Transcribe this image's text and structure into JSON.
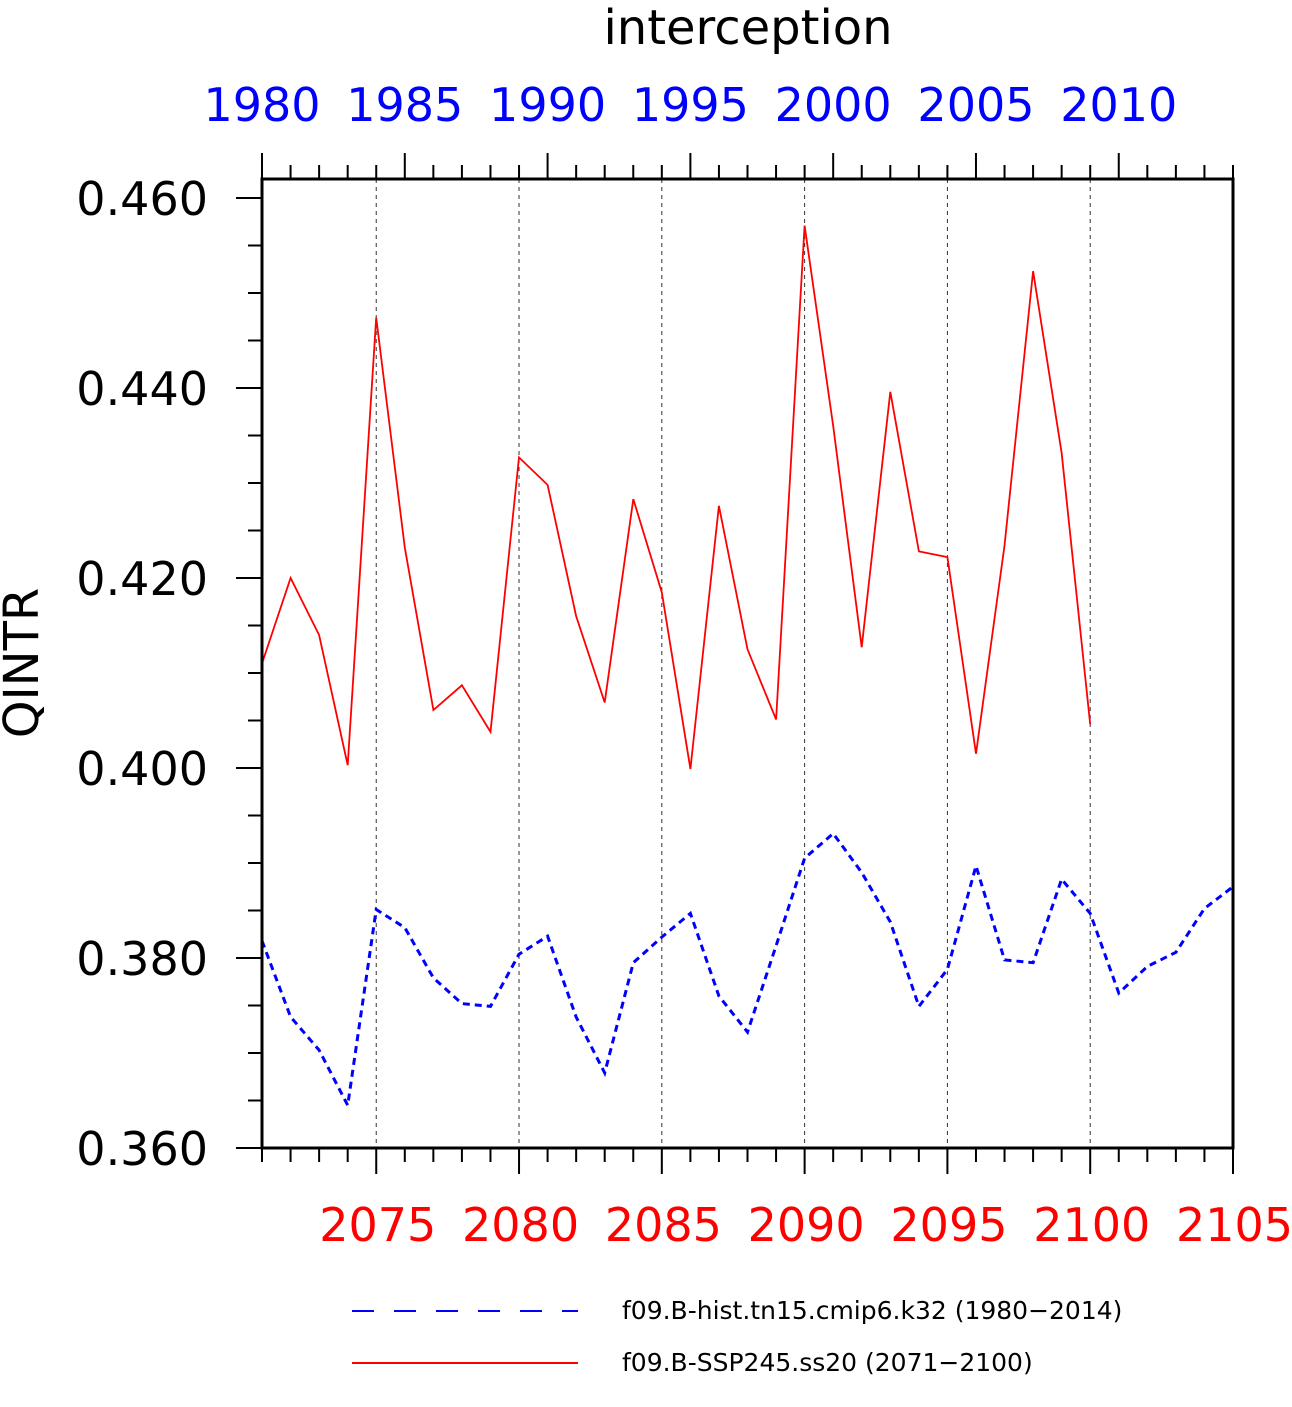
{
  "chart_data": {
    "type": "line",
    "title": "interception",
    "ylabel": "QINTR",
    "ylim": [
      0.36,
      0.462
    ],
    "y_ticks": [
      "0.360",
      "0.380",
      "0.400",
      "0.420",
      "0.440",
      "0.460"
    ],
    "y_tick_values": [
      0.36,
      0.38,
      0.4,
      0.42,
      0.44,
      0.46
    ],
    "grid": "vertical dashed lines at labeled x ticks",
    "legend_position": "bottom",
    "colors": {
      "hist": "#0000ff",
      "ssp": "#ff0000",
      "axis": "#000000"
    },
    "bottom_axis": {
      "color": "#ff0000",
      "range": [
        2071,
        2105
      ],
      "tick_labels": [
        "2075",
        "2080",
        "2085",
        "2090",
        "2095",
        "2100",
        "2105"
      ],
      "tick_values": [
        2075,
        2080,
        2085,
        2090,
        2095,
        2100,
        2105
      ]
    },
    "top_axis": {
      "color": "#0000ff",
      "range": [
        1980,
        2014
      ],
      "tick_labels": [
        "1980",
        "1985",
        "1990",
        "1995",
        "2000",
        "2005",
        "2010"
      ],
      "tick_values": [
        1980,
        1985,
        1990,
        1995,
        2000,
        2005,
        2010
      ]
    },
    "series": [
      {
        "name": "f09.B-hist.tn15.cmip6.k32 (1980−2014)",
        "style": "dashed",
        "color": "#0000ff",
        "x": [
          1980,
          1981,
          1982,
          1983,
          1984,
          1985,
          1986,
          1987,
          1988,
          1989,
          1990,
          1991,
          1992,
          1993,
          1994,
          1995,
          1996,
          1997,
          1998,
          1999,
          2000,
          2001,
          2002,
          2003,
          2004,
          2005,
          2006,
          2007,
          2008,
          2009,
          2010,
          2011,
          2012,
          2013,
          2014
        ],
        "values": [
          0.3818,
          0.3738,
          0.3703,
          0.3645,
          0.3851,
          0.3832,
          0.3779,
          0.3752,
          0.3749,
          0.3804,
          0.3823,
          0.3738,
          0.3679,
          0.3795,
          0.3822,
          0.3847,
          0.376,
          0.3722,
          0.3813,
          0.3905,
          0.3931,
          0.389,
          0.3838,
          0.3749,
          0.3788,
          0.3897,
          0.3798,
          0.3795,
          0.3883,
          0.3847,
          0.3763,
          0.3791,
          0.3806,
          0.3852,
          0.3875
        ]
      },
      {
        "name": "f09.B-SSP245.ss20 (2071−2100)",
        "style": "solid",
        "color": "#ff0000",
        "x": [
          2071,
          2072,
          2073,
          2074,
          2075,
          2076,
          2077,
          2078,
          2079,
          2080,
          2081,
          2082,
          2083,
          2084,
          2085,
          2086,
          2087,
          2088,
          2089,
          2090,
          2091,
          2092,
          2093,
          2094,
          2095,
          2096,
          2097,
          2098,
          2099,
          2100
        ],
        "values": [
          0.411,
          0.42,
          0.414,
          0.4003,
          0.4474,
          0.4232,
          0.4061,
          0.4087,
          0.4038,
          0.4327,
          0.4298,
          0.416,
          0.4069,
          0.4283,
          0.4185,
          0.3999,
          0.4276,
          0.4125,
          0.4051,
          0.4571,
          0.436,
          0.4127,
          0.4396,
          0.4228,
          0.4222,
          0.4015,
          0.4234,
          0.4523,
          0.4332,
          0.4046
        ]
      }
    ]
  }
}
